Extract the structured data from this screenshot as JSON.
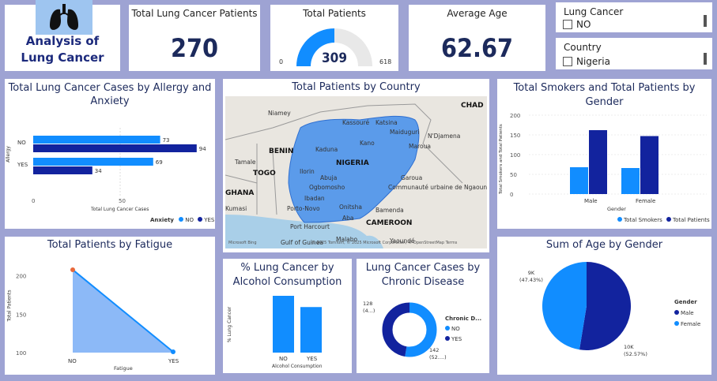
{
  "header": {
    "title": "Analysis of Lung Cancer"
  },
  "kpi_lung": {
    "label": "Total Lung Cancer Patients",
    "value": "270"
  },
  "kpi_patients": {
    "label": "Total Patients",
    "value": "309",
    "min": "0",
    "max": "618",
    "fraction": 0.5
  },
  "kpi_age": {
    "label": "Average Age",
    "value": "62.67"
  },
  "slicer_lung": {
    "title": "Lung Cancer",
    "option": "NO"
  },
  "slicer_country": {
    "title": "Country",
    "option": "Nigeria"
  },
  "colors": {
    "blue": "#118dff",
    "navy": "#12239e",
    "light": "#6fa8f5"
  },
  "allergy_chart": {
    "title": "Total Lung Cancer Cases by Allergy and Anxiety",
    "ylabel": "Allergy",
    "xlabel": "Total Lung Cancer Cases",
    "legend_title": "Anxiety",
    "legend": [
      "NO",
      "YES"
    ],
    "xticks": [
      "0",
      "50"
    ],
    "chart_data": {
      "type": "bar",
      "orientation": "horizontal",
      "categories": [
        "NO",
        "YES"
      ],
      "series": [
        {
          "name": "NO",
          "values": [
            73,
            69
          ]
        },
        {
          "name": "YES",
          "values": [
            94,
            34
          ]
        }
      ],
      "xlim": [
        0,
        100
      ]
    }
  },
  "map": {
    "title": "Total Patients by Country",
    "labels": [
      "CHAD",
      "Niamey",
      "Maiduguri",
      "N'Djamena",
      "Kano",
      "Maroua",
      "BENIN",
      "Kaduna",
      "NIGERIA",
      "TOGO",
      "Ilorin",
      "Abuja",
      "Garoua",
      "Ogbomosho",
      "Communauté urbaine de Ngaoundéré",
      "GHANA",
      "Ibadan",
      "Tamale",
      "Porto-Novo",
      "Onitsha",
      "Bamenda",
      "Kumasi",
      "Port Harcourt",
      "Aba",
      "CAMEROON",
      "Gulf of Guinea",
      "Malabo",
      "Yaoundé",
      "Kassouré",
      "Katsina"
    ],
    "attribution": "Microsoft Bing",
    "copyright": "© 2025 TomTom, © 2025 Microsoft Corporation, © OpenStreetMap  Terms"
  },
  "smokers_chart": {
    "title": "Total Smokers and Total Patients by Gender",
    "ylabel": "Total Smokers and Total Patients",
    "xlabel": "Gender",
    "legend": [
      "Total Smokers",
      "Total Patients"
    ],
    "yticks": [
      "0",
      "50",
      "100",
      "150",
      "200"
    ],
    "chart_data": {
      "type": "bar",
      "categories": [
        "Male",
        "Female"
      ],
      "series": [
        {
          "name": "Total Smokers",
          "values": [
            68,
            66
          ]
        },
        {
          "name": "Total Patients",
          "values": [
            162,
            147
          ]
        }
      ],
      "ylim": [
        0,
        200
      ]
    }
  },
  "fatigue_chart": {
    "title": "Total Patients by Fatigue",
    "ylabel": "Total Patients",
    "xlabel": "Fatigue",
    "yticks": [
      "100",
      "150",
      "200"
    ],
    "chart_data": {
      "type": "area",
      "categories": [
        "NO",
        "YES"
      ],
      "values": [
        208,
        101
      ],
      "ylim": [
        100,
        210
      ]
    }
  },
  "alcohol_chart": {
    "title": "% Lung Cancer by Alcohol Consumption",
    "ylabel": "% Lung Cancer",
    "xlabel": "Alcohol Consumption",
    "chart_data": {
      "type": "bar",
      "categories": [
        "NO",
        "YES"
      ],
      "values": [
        0.96,
        0.77
      ],
      "ylim": [
        0,
        1
      ]
    }
  },
  "chronic_chart": {
    "title": "Lung Cancer Cases by Chronic Disease",
    "legend_title": "Chronic D...",
    "legend": [
      "NO",
      "YES"
    ],
    "label_no_value": "142",
    "label_no_pct": "(52....)",
    "label_yes_value": "128",
    "label_yes_pct": "(4...)",
    "chart_data": {
      "type": "pie",
      "donut": true,
      "categories": [
        "NO",
        "YES"
      ],
      "values": [
        142,
        128
      ]
    }
  },
  "age_chart": {
    "title": "Sum of Age by Gender",
    "legend_title": "Gender",
    "legend": [
      "Male",
      "Female"
    ],
    "label_male_value": "10K",
    "label_male_pct": "(52.57%)",
    "label_female_value": "9K",
    "label_female_pct": "(47.43%)",
    "chart_data": {
      "type": "pie",
      "categories": [
        "Male",
        "Female"
      ],
      "values": [
        52.57,
        47.43
      ]
    }
  }
}
